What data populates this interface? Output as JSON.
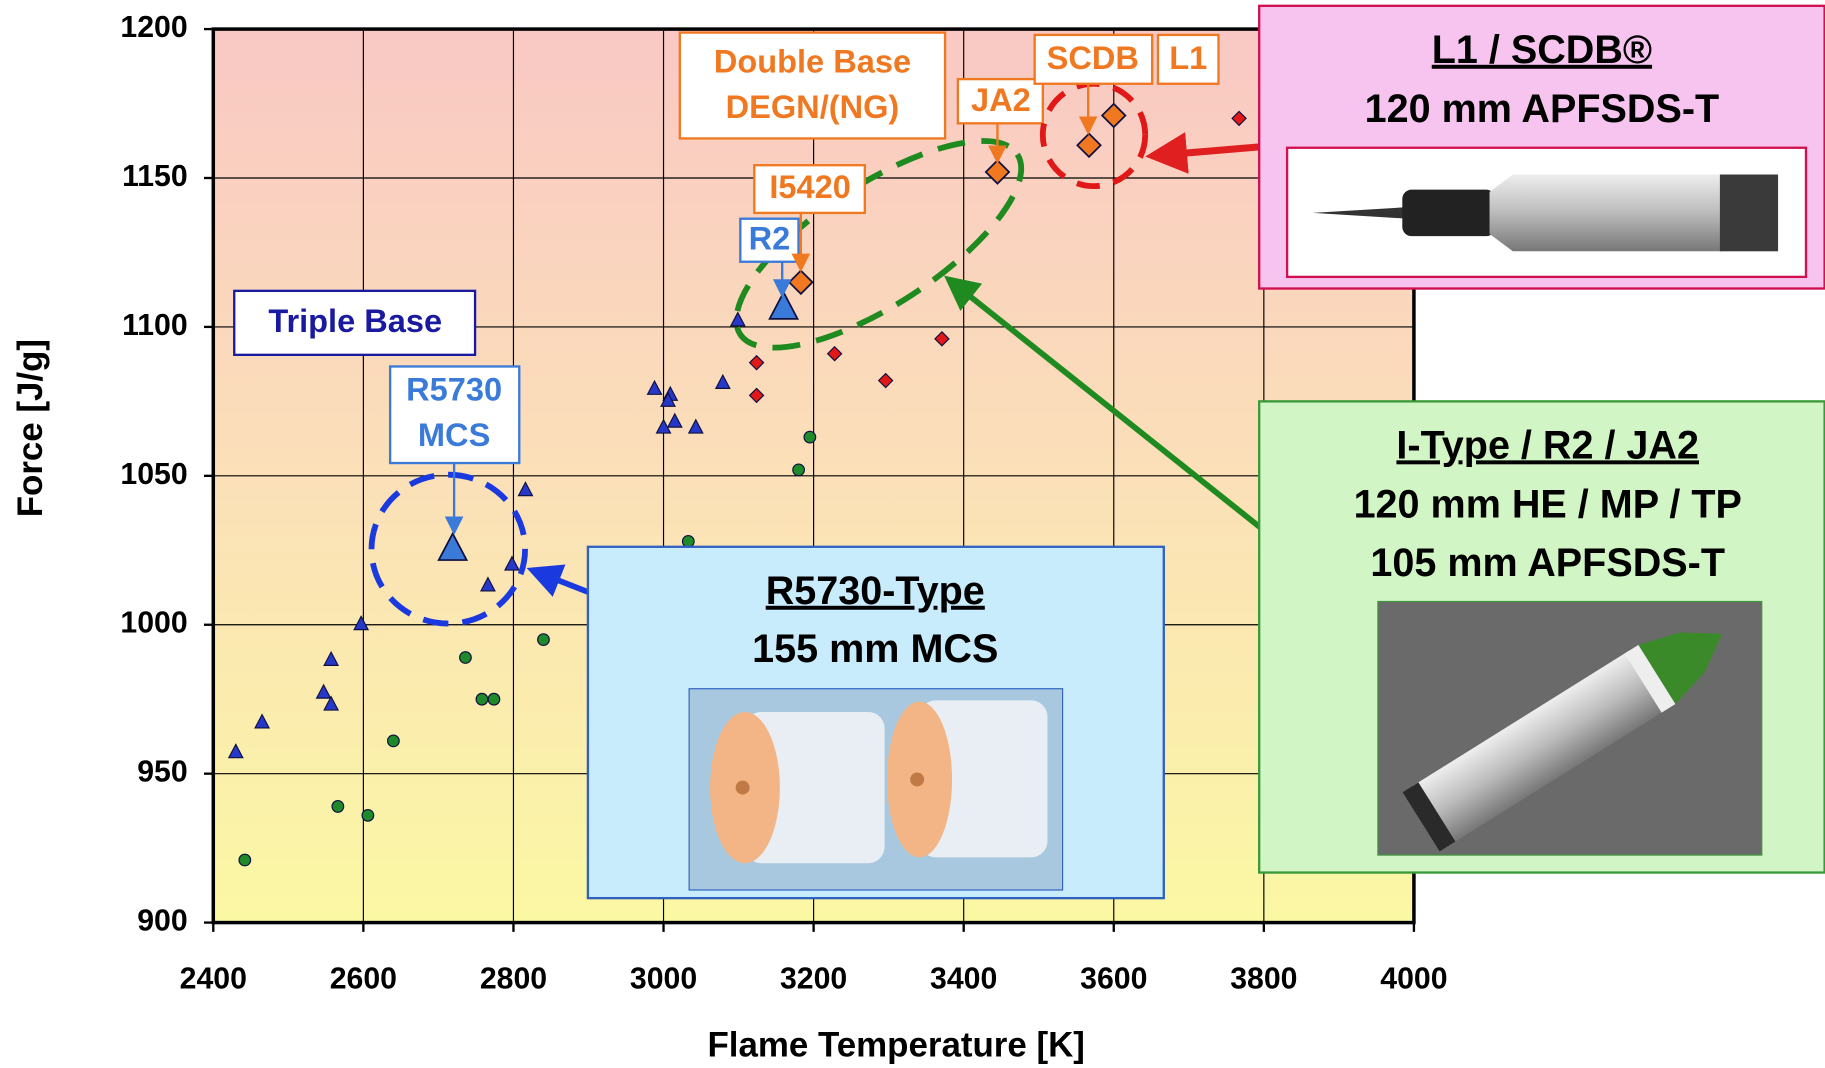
{
  "chart_data": {
    "type": "scatter",
    "xlabel": "Flame Temperature  [K]",
    "ylabel": "Force  [J/g]",
    "xlim": [
      2400,
      4000
    ],
    "xticks": [
      2400,
      2600,
      2800,
      3000,
      3200,
      3400,
      3600,
      3800,
      4000
    ],
    "ylim": [
      900,
      1200
    ],
    "yticks": [
      900,
      950,
      1000,
      1050,
      1100,
      1150,
      1200
    ],
    "grid": true,
    "series": [
      {
        "marker": "triangle",
        "color": "#2638c8",
        "marker_size": 6,
        "x": [
          2430,
          2465,
          2547,
          2557,
          2557,
          2597,
          2766,
          2798,
          2816,
          2988,
          3009,
          3006,
          3000,
          3015,
          3043,
          3079,
          3099
        ],
        "y": [
          957,
          967,
          977,
          973,
          988,
          1000,
          1013,
          1020,
          1045,
          1079,
          1077,
          1075,
          1066,
          1068,
          1066,
          1081,
          1102
        ]
      },
      {
        "marker": "diamond",
        "color": "#e01818",
        "marker_size": 6,
        "x": [
          3124,
          3124,
          3228,
          3296,
          3371,
          3767
        ],
        "y": [
          1088,
          1077,
          1091,
          1082,
          1096,
          1170
        ]
      },
      {
        "marker": "circle",
        "color": "#1f8a2a",
        "marker_size": 5,
        "x": [
          2442,
          2566,
          2606,
          2640,
          2736,
          2758,
          2774,
          2840,
          3033,
          3180,
          3195
        ],
        "y": [
          921,
          939,
          936,
          961,
          989,
          975,
          975,
          995,
          1028,
          1052,
          1063
        ]
      },
      {
        "marker": "triangle",
        "color": "#3a7ad8",
        "marker_size": 12,
        "x": [
          2719,
          3160
        ],
        "y": [
          1025,
          1106
        ]
      },
      {
        "marker": "diamond",
        "color": "#f07820",
        "marker_size": 10,
        "x": [
          3183,
          3445,
          3567,
          3600
        ],
        "y": [
          1115,
          1152,
          1161,
          1171
        ]
      }
    ],
    "annotations": [
      "Triple Base",
      [
        "R5730",
        "MCS"
      ],
      "R2",
      "I5420",
      [
        "Double Base",
        "DEGN/(NG)"
      ],
      "JA2",
      "SCDB",
      "L1",
      [
        "L1 / SCDB®",
        "120 mm APFSDS-T"
      ],
      [
        "I-Type / R2 / JA2",
        "120 mm HE / MP / TP",
        "105 mm APFSDS-T"
      ],
      [
        "R5730-Type",
        "155 mm MCS"
      ]
    ]
  }
}
